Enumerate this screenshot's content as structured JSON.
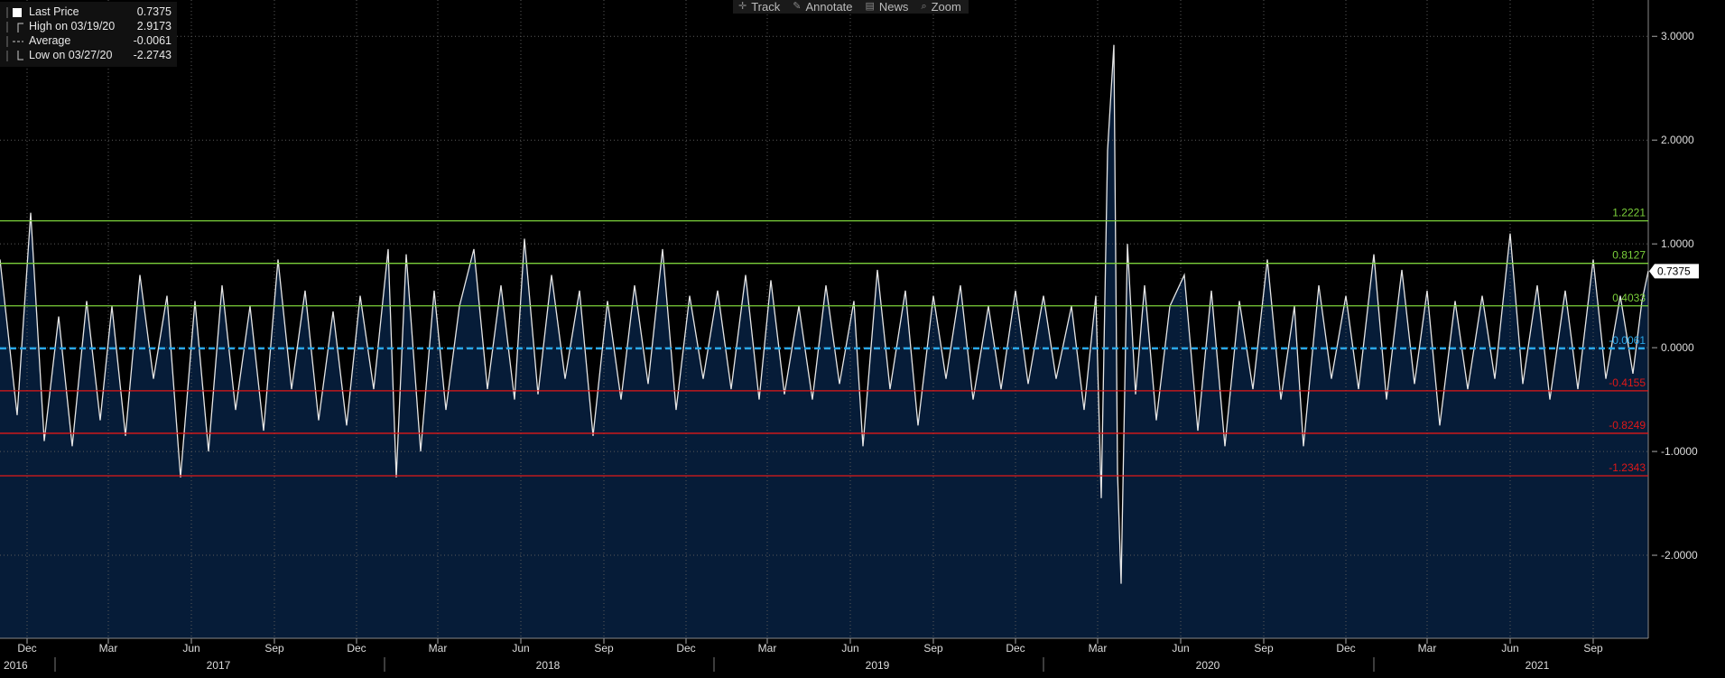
{
  "toolbar": {
    "items": [
      {
        "label": "Track",
        "icon": "crosshair-icon"
      },
      {
        "label": "Annotate",
        "icon": "pencil-icon"
      },
      {
        "label": "News",
        "icon": "news-icon"
      },
      {
        "label": "Zoom",
        "icon": "magnifier-icon"
      }
    ]
  },
  "legend": {
    "last_price": {
      "label": "Last Price",
      "value": "0.7375"
    },
    "high": {
      "label": "High on 03/19/20",
      "value": "2.9173"
    },
    "average": {
      "label": "Average",
      "value": "-0.0061"
    },
    "low": {
      "label": "Low on 03/27/20",
      "value": "-2.2743"
    }
  },
  "chart_data": {
    "type": "line",
    "ylim": [
      -2.8,
      3.35
    ],
    "y_ticks": [
      3,
      2,
      1,
      0,
      -1,
      -2
    ],
    "y_tick_labels": [
      "3.0000",
      "2.0000",
      "1.0000",
      "0.0000",
      "-1.0000",
      "-2.0000"
    ],
    "grid": true,
    "legend_position": "top-left",
    "last_value": 0.7375,
    "last_value_label": "0.7375",
    "x_start": "2016-11",
    "x_end": "2021-11",
    "month_ticks": [
      "Dec",
      "Mar",
      "Jun",
      "Sep",
      "Dec",
      "Mar",
      "Jun",
      "Sep",
      "Dec",
      "Mar",
      "Jun",
      "Sep",
      "Dec",
      "Mar",
      "Jun",
      "Sep",
      "Dec",
      "Mar",
      "Jun",
      "Sep"
    ],
    "year_labels": [
      "2016",
      "2017",
      "2018",
      "2019",
      "2020",
      "2021"
    ],
    "reference_lines": [
      {
        "value": 1.2221,
        "label": "1.2221",
        "color": "#7bd03a",
        "style": "solid"
      },
      {
        "value": 0.8127,
        "label": "0.8127",
        "color": "#7bd03a",
        "style": "solid"
      },
      {
        "value": 0.4033,
        "label": "0.4033",
        "color": "#7bd03a",
        "style": "solid"
      },
      {
        "value": -0.0061,
        "label": "-0.0061",
        "color": "#2aa7e8",
        "style": "dashed"
      },
      {
        "value": -0.4155,
        "label": "-0.4155",
        "color": "#e01818",
        "style": "solid"
      },
      {
        "value": -0.8249,
        "label": "-0.8249",
        "color": "#e01818",
        "style": "solid"
      },
      {
        "value": -1.2343,
        "label": "-1.2343",
        "color": "#e01818",
        "style": "solid"
      }
    ],
    "series": [
      {
        "color": "#e6e6e6",
        "fill_below": "#061c38",
        "points": [
          [
            "2016-11-01",
            0.85
          ],
          [
            "2016-11-20",
            -0.65
          ],
          [
            "2016-12-05",
            1.3
          ],
          [
            "2016-12-20",
            -0.9
          ],
          [
            "2017-01-05",
            0.3
          ],
          [
            "2017-01-20",
            -0.95
          ],
          [
            "2017-02-05",
            0.45
          ],
          [
            "2017-02-20",
            -0.7
          ],
          [
            "2017-03-05",
            0.4
          ],
          [
            "2017-03-20",
            -0.85
          ],
          [
            "2017-04-05",
            0.7
          ],
          [
            "2017-04-20",
            -0.3
          ],
          [
            "2017-05-05",
            0.5
          ],
          [
            "2017-05-20",
            -1.25
          ],
          [
            "2017-06-05",
            0.45
          ],
          [
            "2017-06-20",
            -1.0
          ],
          [
            "2017-07-05",
            0.6
          ],
          [
            "2017-07-20",
            -0.6
          ],
          [
            "2017-08-05",
            0.4
          ],
          [
            "2017-08-20",
            -0.8
          ],
          [
            "2017-09-05",
            0.85
          ],
          [
            "2017-09-20",
            -0.4
          ],
          [
            "2017-10-05",
            0.55
          ],
          [
            "2017-10-20",
            -0.7
          ],
          [
            "2017-11-05",
            0.35
          ],
          [
            "2017-11-20",
            -0.75
          ],
          [
            "2017-12-05",
            0.5
          ],
          [
            "2017-12-20",
            -0.4
          ],
          [
            "2018-01-05",
            0.95
          ],
          [
            "2018-01-14",
            -1.25
          ],
          [
            "2018-01-25",
            0.9
          ],
          [
            "2018-02-10",
            -1.0
          ],
          [
            "2018-02-25",
            0.55
          ],
          [
            "2018-03-10",
            -0.6
          ],
          [
            "2018-03-25",
            0.4
          ],
          [
            "2018-04-10",
            0.95
          ],
          [
            "2018-04-25",
            -0.4
          ],
          [
            "2018-05-10",
            0.6
          ],
          [
            "2018-05-25",
            -0.5
          ],
          [
            "2018-06-05",
            1.05
          ],
          [
            "2018-06-20",
            -0.45
          ],
          [
            "2018-07-05",
            0.7
          ],
          [
            "2018-07-20",
            -0.3
          ],
          [
            "2018-08-05",
            0.55
          ],
          [
            "2018-08-20",
            -0.85
          ],
          [
            "2018-09-05",
            0.45
          ],
          [
            "2018-09-20",
            -0.5
          ],
          [
            "2018-10-05",
            0.6
          ],
          [
            "2018-10-20",
            -0.35
          ],
          [
            "2018-11-05",
            0.95
          ],
          [
            "2018-11-20",
            -0.6
          ],
          [
            "2018-12-05",
            0.5
          ],
          [
            "2018-12-20",
            -0.3
          ],
          [
            "2019-01-05",
            0.55
          ],
          [
            "2019-01-20",
            -0.4
          ],
          [
            "2019-02-05",
            0.7
          ],
          [
            "2019-02-20",
            -0.5
          ],
          [
            "2019-03-05",
            0.65
          ],
          [
            "2019-03-20",
            -0.45
          ],
          [
            "2019-04-05",
            0.4
          ],
          [
            "2019-04-20",
            -0.5
          ],
          [
            "2019-05-05",
            0.6
          ],
          [
            "2019-05-20",
            -0.35
          ],
          [
            "2019-06-05",
            0.45
          ],
          [
            "2019-06-15",
            -0.95
          ],
          [
            "2019-07-01",
            0.75
          ],
          [
            "2019-07-15",
            -0.4
          ],
          [
            "2019-08-01",
            0.55
          ],
          [
            "2019-08-15",
            -0.75
          ],
          [
            "2019-09-01",
            0.5
          ],
          [
            "2019-09-15",
            -0.3
          ],
          [
            "2019-10-01",
            0.6
          ],
          [
            "2019-10-15",
            -0.5
          ],
          [
            "2019-11-01",
            0.4
          ],
          [
            "2019-11-15",
            -0.4
          ],
          [
            "2019-12-01",
            0.55
          ],
          [
            "2019-12-15",
            -0.35
          ],
          [
            "2020-01-01",
            0.5
          ],
          [
            "2020-01-15",
            -0.3
          ],
          [
            "2020-02-01",
            0.4
          ],
          [
            "2020-02-15",
            -0.6
          ],
          [
            "2020-02-28",
            0.5
          ],
          [
            "2020-03-05",
            -1.45
          ],
          [
            "2020-03-12",
            1.9
          ],
          [
            "2020-03-19",
            2.9173
          ],
          [
            "2020-03-23",
            -1.2
          ],
          [
            "2020-03-27",
            -2.2743
          ],
          [
            "2020-04-03",
            1.0
          ],
          [
            "2020-04-12",
            -0.45
          ],
          [
            "2020-04-22",
            0.6
          ],
          [
            "2020-05-05",
            -0.7
          ],
          [
            "2020-05-20",
            0.4
          ],
          [
            "2020-06-05",
            0.7
          ],
          [
            "2020-06-20",
            -0.8
          ],
          [
            "2020-07-05",
            0.55
          ],
          [
            "2020-07-20",
            -0.95
          ],
          [
            "2020-08-05",
            0.45
          ],
          [
            "2020-08-20",
            -0.4
          ],
          [
            "2020-09-05",
            0.85
          ],
          [
            "2020-09-20",
            -0.5
          ],
          [
            "2020-10-05",
            0.4
          ],
          [
            "2020-10-15",
            -0.95
          ],
          [
            "2020-11-01",
            0.6
          ],
          [
            "2020-11-15",
            -0.3
          ],
          [
            "2020-12-01",
            0.5
          ],
          [
            "2020-12-15",
            -0.4
          ],
          [
            "2021-01-01",
            0.9
          ],
          [
            "2021-01-15",
            -0.5
          ],
          [
            "2021-02-01",
            0.75
          ],
          [
            "2021-02-15",
            -0.35
          ],
          [
            "2021-03-01",
            0.55
          ],
          [
            "2021-03-15",
            -0.75
          ],
          [
            "2021-04-01",
            0.45
          ],
          [
            "2021-04-15",
            -0.4
          ],
          [
            "2021-05-01",
            0.5
          ],
          [
            "2021-05-15",
            -0.3
          ],
          [
            "2021-06-01",
            1.1
          ],
          [
            "2021-06-15",
            -0.35
          ],
          [
            "2021-07-01",
            0.6
          ],
          [
            "2021-07-15",
            -0.5
          ],
          [
            "2021-08-01",
            0.55
          ],
          [
            "2021-08-15",
            -0.4
          ],
          [
            "2021-09-01",
            0.85
          ],
          [
            "2021-09-15",
            -0.3
          ],
          [
            "2021-10-01",
            0.5
          ],
          [
            "2021-10-15",
            -0.25
          ],
          [
            "2021-10-25",
            0.45
          ],
          [
            "2021-11-01",
            0.7375
          ]
        ]
      }
    ]
  }
}
